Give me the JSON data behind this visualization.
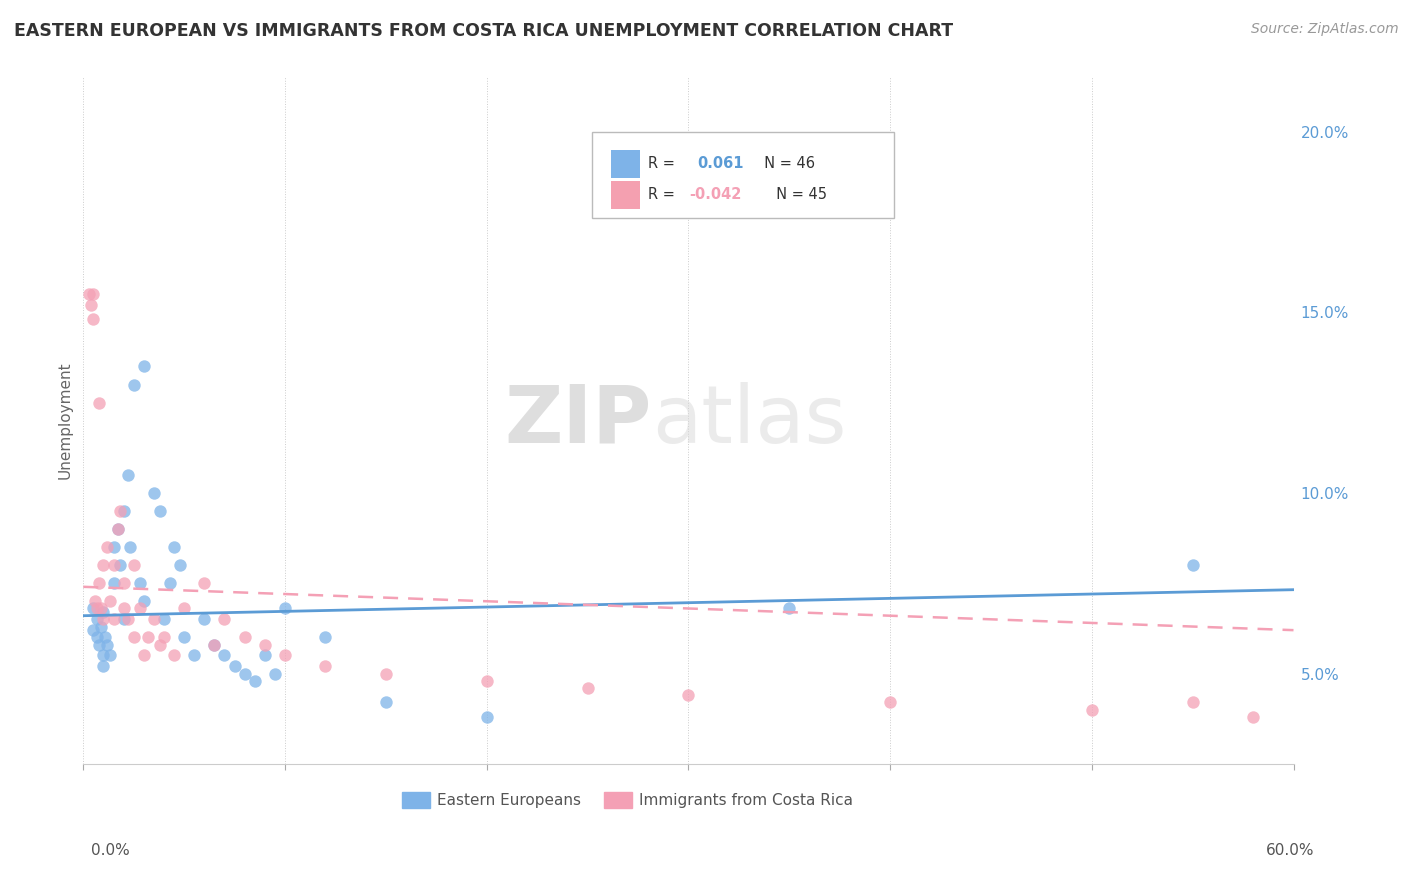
{
  "title": "EASTERN EUROPEAN VS IMMIGRANTS FROM COSTA RICA UNEMPLOYMENT CORRELATION CHART",
  "source": "Source: ZipAtlas.com",
  "ylabel": "Unemployment",
  "right_ytick_vals": [
    0.05,
    0.1,
    0.15,
    0.2
  ],
  "xlim": [
    0.0,
    0.6
  ],
  "ylim": [
    0.025,
    0.215
  ],
  "legend_color1": "#7eb3e8",
  "legend_color2": "#f4a0b0",
  "series1_label": "Eastern Europeans",
  "series2_label": "Immigrants from Costa Rica",
  "dot_color1": "#7eb3e8",
  "dot_color2": "#f4a0b5",
  "line_color1": "#5b9bd5",
  "line_color2": "#f4a0b5",
  "line1_slope": 0.012,
  "line1_intercept": 0.066,
  "line2_slope": -0.02,
  "line2_intercept": 0.074,
  "eastern_europeans_x": [
    0.005,
    0.005,
    0.007,
    0.007,
    0.008,
    0.009,
    0.01,
    0.01,
    0.01,
    0.011,
    0.012,
    0.013,
    0.015,
    0.015,
    0.017,
    0.018,
    0.02,
    0.02,
    0.022,
    0.023,
    0.025,
    0.028,
    0.03,
    0.03,
    0.035,
    0.038,
    0.04,
    0.043,
    0.045,
    0.048,
    0.05,
    0.055,
    0.06,
    0.065,
    0.07,
    0.075,
    0.08,
    0.085,
    0.09,
    0.095,
    0.1,
    0.12,
    0.15,
    0.2,
    0.35,
    0.55
  ],
  "eastern_europeans_y": [
    0.068,
    0.062,
    0.065,
    0.06,
    0.058,
    0.063,
    0.067,
    0.055,
    0.052,
    0.06,
    0.058,
    0.055,
    0.085,
    0.075,
    0.09,
    0.08,
    0.095,
    0.065,
    0.105,
    0.085,
    0.13,
    0.075,
    0.135,
    0.07,
    0.1,
    0.095,
    0.065,
    0.075,
    0.085,
    0.08,
    0.06,
    0.055,
    0.065,
    0.058,
    0.055,
    0.052,
    0.05,
    0.048,
    0.055,
    0.05,
    0.068,
    0.06,
    0.042,
    0.038,
    0.068,
    0.08
  ],
  "costa_rica_x": [
    0.003,
    0.004,
    0.005,
    0.005,
    0.006,
    0.007,
    0.008,
    0.008,
    0.009,
    0.01,
    0.01,
    0.012,
    0.013,
    0.015,
    0.015,
    0.017,
    0.018,
    0.02,
    0.02,
    0.022,
    0.025,
    0.025,
    0.028,
    0.03,
    0.032,
    0.035,
    0.038,
    0.04,
    0.045,
    0.05,
    0.06,
    0.065,
    0.07,
    0.08,
    0.09,
    0.1,
    0.12,
    0.15,
    0.2,
    0.25,
    0.3,
    0.4,
    0.5,
    0.55,
    0.58
  ],
  "costa_rica_y": [
    0.155,
    0.152,
    0.155,
    0.148,
    0.07,
    0.068,
    0.075,
    0.125,
    0.068,
    0.08,
    0.065,
    0.085,
    0.07,
    0.08,
    0.065,
    0.09,
    0.095,
    0.075,
    0.068,
    0.065,
    0.08,
    0.06,
    0.068,
    0.055,
    0.06,
    0.065,
    0.058,
    0.06,
    0.055,
    0.068,
    0.075,
    0.058,
    0.065,
    0.06,
    0.058,
    0.055,
    0.052,
    0.05,
    0.048,
    0.046,
    0.044,
    0.042,
    0.04,
    0.042,
    0.038
  ]
}
